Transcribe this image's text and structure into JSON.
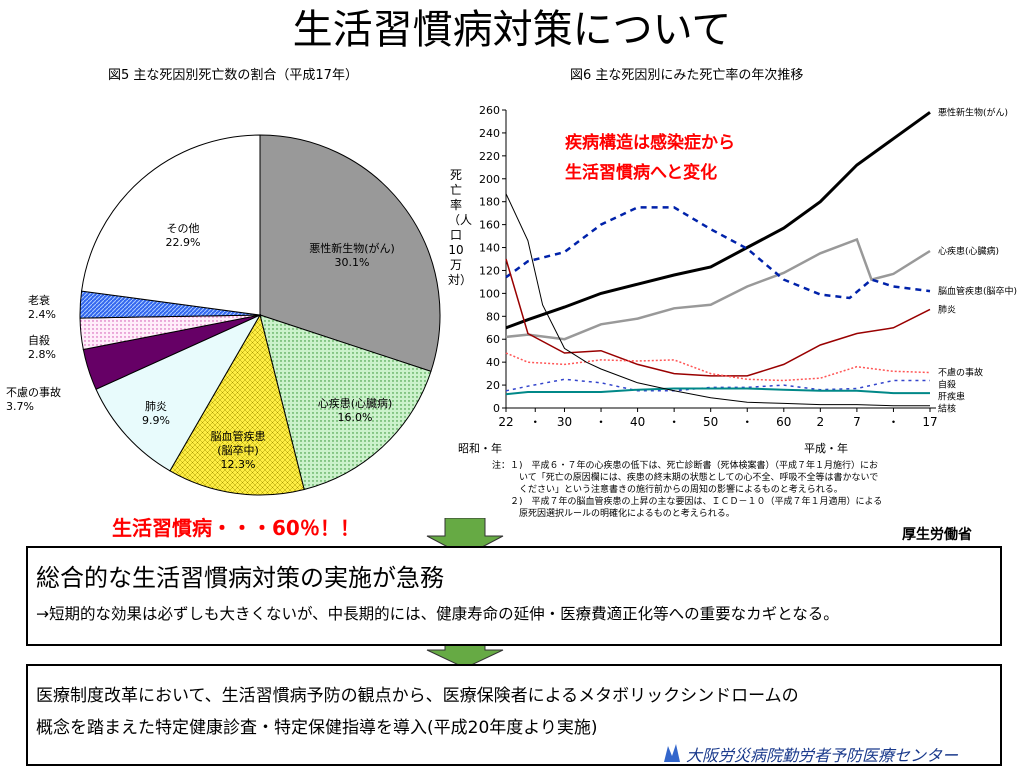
{
  "title": "生活習慣病対策について",
  "chart_data": [
    {
      "type": "pie",
      "title": "図5 主な死因別死亡数の割合（平成17年）",
      "slices": [
        {
          "label": "悪性新生物(がん)",
          "value": 30.1,
          "display": "30.1%",
          "color": "#999999",
          "pattern": "solid"
        },
        {
          "label": "心疾患(心臓病)",
          "value": 16.0,
          "display": "16.0%",
          "color": "#ccf2cc",
          "pattern": "dots"
        },
        {
          "label": "脳血管疾患\n(脳卒中)",
          "value": 12.3,
          "display": "12.3%",
          "color": "#ffee44",
          "pattern": "crosshatch"
        },
        {
          "label": "肺炎",
          "value": 9.9,
          "display": "9.9%",
          "color": "#e8fbfc",
          "pattern": "solid"
        },
        {
          "label": "不慮の事故",
          "value": 3.7,
          "display": "3.7%",
          "color": "#660066",
          "pattern": "solid"
        },
        {
          "label": "自殺",
          "value": 2.8,
          "display": "2.8%",
          "color": "#ffccee",
          "pattern": "dots"
        },
        {
          "label": "老衰",
          "value": 2.4,
          "display": "2.4%",
          "color": "#3366ee",
          "pattern": "hatch"
        },
        {
          "label": "その他",
          "value": 22.9,
          "display": "22.9%",
          "color": "#ffffff",
          "pattern": "solid"
        }
      ]
    },
    {
      "type": "line",
      "title": "図6 主な死因別にみた死亡率の年次推移",
      "ylabel": "死亡率（人口10万対）",
      "ylim": [
        0,
        260
      ],
      "yticks": [
        0,
        20,
        40,
        60,
        80,
        100,
        120,
        140,
        160,
        180,
        200,
        220,
        240,
        260
      ],
      "xlim": [
        1947,
        2005
      ],
      "xticks": [
        {
          "x": 1947,
          "label": "22"
        },
        {
          "x": 1951,
          "label": "・"
        },
        {
          "x": 1955,
          "label": "30"
        },
        {
          "x": 1960,
          "label": "・"
        },
        {
          "x": 1965,
          "label": "40"
        },
        {
          "x": 1970,
          "label": "・"
        },
        {
          "x": 1975,
          "label": "50"
        },
        {
          "x": 1980,
          "label": "・"
        },
        {
          "x": 1985,
          "label": "60"
        },
        {
          "x": 1990,
          "label": "2"
        },
        {
          "x": 1995,
          "label": "7"
        },
        {
          "x": 2000,
          "label": "・"
        },
        {
          "x": 2005,
          "label": "17"
        }
      ],
      "era_labels": [
        "昭和・年",
        "平成・年"
      ],
      "series": [
        {
          "name": "悪性新生物(がん)",
          "color": "#000000",
          "dash": "",
          "width": 3,
          "x": [
            1947,
            1950,
            1955,
            1960,
            1965,
            1970,
            1975,
            1980,
            1985,
            1990,
            1995,
            2000,
            2005
          ],
          "y": [
            70,
            77,
            88,
            100,
            108,
            116,
            123,
            140,
            157,
            180,
            212,
            235,
            258
          ]
        },
        {
          "name": "心疾患(心臓病)",
          "color": "#999999",
          "dash": "",
          "width": 2.5,
          "x": [
            1947,
            1950,
            1955,
            1960,
            1965,
            1970,
            1975,
            1980,
            1985,
            1990,
            1995,
            1997,
            2000,
            2005
          ],
          "y": [
            62,
            64,
            60,
            73,
            78,
            87,
            90,
            106,
            118,
            135,
            147,
            112,
            117,
            137
          ]
        },
        {
          "name": "脳血管疾患(脳卒中)",
          "color": "#0022aa",
          "dash": "6,5",
          "width": 2.5,
          "x": [
            1947,
            1950,
            1955,
            1960,
            1965,
            1970,
            1975,
            1980,
            1985,
            1990,
            1994,
            1997,
            2000,
            2005
          ],
          "y": [
            114,
            128,
            136,
            160,
            175,
            175,
            156,
            139,
            112,
            99,
            96,
            112,
            106,
            102
          ]
        },
        {
          "name": "肺炎",
          "color": "#990000",
          "dash": "",
          "width": 1.5,
          "x": [
            1947,
            1950,
            1955,
            1960,
            1965,
            1970,
            1975,
            1980,
            1985,
            1990,
            1995,
            2000,
            2005
          ],
          "y": [
            130,
            65,
            48,
            50,
            38,
            30,
            28,
            28,
            38,
            55,
            65,
            70,
            86
          ]
        },
        {
          "name": "不慮の事故",
          "color": "#ff5555",
          "dash": "2,2",
          "width": 1.5,
          "x": [
            1947,
            1950,
            1955,
            1960,
            1965,
            1970,
            1975,
            1980,
            1985,
            1990,
            1995,
            2000,
            2005
          ],
          "y": [
            48,
            40,
            38,
            42,
            41,
            42,
            30,
            25,
            24,
            26,
            36,
            32,
            31
          ]
        },
        {
          "name": "自殺",
          "color": "#3344cc",
          "dash": "3,4",
          "width": 1.5,
          "x": [
            1947,
            1950,
            1955,
            1960,
            1965,
            1970,
            1975,
            1980,
            1985,
            1990,
            1995,
            2000,
            2005
          ],
          "y": [
            15,
            19,
            25,
            22,
            15,
            15,
            18,
            18,
            20,
            16,
            17,
            24,
            24
          ]
        },
        {
          "name": "肝疾患",
          "color": "#008888",
          "dash": "",
          "width": 2,
          "x": [
            1947,
            1950,
            1955,
            1960,
            1965,
            1970,
            1975,
            1980,
            1985,
            1990,
            1995,
            2000,
            2005
          ],
          "y": [
            12,
            14,
            14,
            14,
            16,
            17,
            17,
            17,
            16,
            15,
            15,
            13,
            13
          ]
        },
        {
          "name": "結核",
          "color": "#000000",
          "dash": "",
          "width": 1,
          "x": [
            1947,
            1950,
            1952,
            1955,
            1958,
            1960,
            1965,
            1970,
            1975,
            1980,
            1985,
            1990,
            1995,
            2000,
            2005
          ],
          "y": [
            187,
            146,
            90,
            52,
            40,
            34,
            22,
            15,
            9,
            5,
            4,
            3,
            3,
            2,
            2
          ]
        }
      ]
    }
  ],
  "pie_callout": "生活習慣病・・・60％！！",
  "chart_callout": "疾病構造は感染症から\n生活習慣病へと変化",
  "notes": "注：１)　平成６・７年の心疾患の低下は、死亡診断書（死体検案書）（平成７年１月施行）にお\n　　　いて「死亡の原因欄には、疾患の終末期の状態としての心不全、呼吸不全等は書かないで\n　　　ください」という注意書きの施行前からの周知の影響によるものと考えられる。\n　　２)　平成７年の脳血管疾患の上昇の主な要因は、ＩＣＤ－１０（平成７年１月適用）による\n　　　原死因選択ルールの明確化によるものと考えられる。",
  "source": "厚生労働省",
  "box1": {
    "heading": "総合的な生活習慣病対策の実施が急務",
    "body": "→短期的な効果は必ずしも大きくないが、中長期的には、健康寿命の延伸・医療費適正化等への重要なカギとなる。"
  },
  "box2": {
    "body": "医療制度改革において、生活習慣病予防の観点から、医療保険者によるメタボリックシンドロームの\n概念を踏まえた特定健康診査・特定保健指導を導入(平成20年度より実施)"
  },
  "footer": "大阪労災病院勤労者予防医療センター",
  "arrow_color": "#66aa44"
}
